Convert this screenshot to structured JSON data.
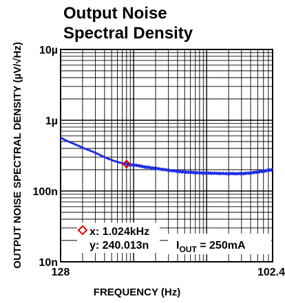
{
  "chart_data": {
    "type": "line",
    "title_line1": "Output Noise",
    "title_line2": "Spectral Density",
    "xlabel": "FREQUENCY (Hz)",
    "ylabel": "OUTPUT NOISE SPECTRAL DENSITY (µV/√Hz)",
    "x_scale": "log",
    "y_scale": "log",
    "xlim": [
      128,
      102400
    ],
    "ylim": [
      1e-08,
      1e-05
    ],
    "x_tick_labels": [
      "128",
      "102.4"
    ],
    "y_tick_labels": [
      "10µ",
      "1µ",
      "100n",
      "10n"
    ],
    "grid": true,
    "series": [
      {
        "color": "#1f2fe6",
        "x": [
          128,
          150,
          180,
          220,
          270,
          330,
          400,
          480,
          580,
          700,
          850,
          1024,
          1200,
          1450,
          1750,
          2100,
          2600,
          3200,
          4000,
          5000,
          6200,
          7500,
          9000,
          11000,
          13500,
          16500,
          20000,
          25000,
          30000,
          36000,
          43000,
          52000,
          62000,
          75000,
          88000,
          102400
        ],
        "y": [
          5.7e-07,
          5.2e-07,
          4.8e-07,
          4.4e-07,
          4e-07,
          3.7e-07,
          3.4e-07,
          3.1e-07,
          2.85e-07,
          2.65e-07,
          2.5e-07,
          2.4e-07,
          2.34e-07,
          2.3e-07,
          2.2e-07,
          2.15e-07,
          2.08e-07,
          2.02e-07,
          1.96e-07,
          1.9e-07,
          1.86e-07,
          1.84e-07,
          1.82e-07,
          1.8e-07,
          1.79e-07,
          1.78e-07,
          1.77e-07,
          1.76e-07,
          1.76e-07,
          1.76e-07,
          1.77e-07,
          1.8e-07,
          1.85e-07,
          1.9e-07,
          1.96e-07,
          2e-07
        ]
      }
    ],
    "cursor": {
      "x": 1024,
      "y": 2.40013e-07,
      "x_label": "x: 1.024kHz",
      "y_label": "y: 240.013n",
      "color": "#e00000"
    },
    "annotation": {
      "text_main": "I",
      "text_sub": "OUT",
      "text_rest": " = 250mA"
    }
  }
}
